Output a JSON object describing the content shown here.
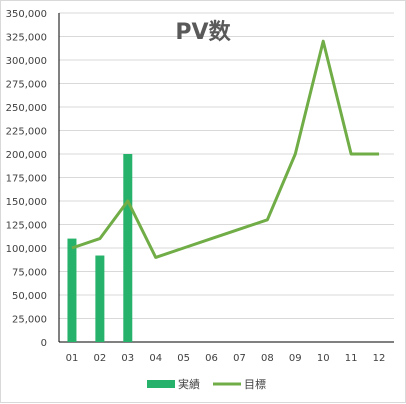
{
  "chart_data": {
    "type": "bar",
    "title": "PV数",
    "categories": [
      "01",
      "02",
      "03",
      "04",
      "05",
      "06",
      "07",
      "08",
      "09",
      "10",
      "11",
      "12"
    ],
    "series": [
      {
        "name": "実績",
        "type": "bar",
        "color": "#27b26b",
        "values": [
          110000,
          92000,
          200000,
          null,
          null,
          null,
          null,
          null,
          null,
          null,
          null,
          null
        ]
      },
      {
        "name": "目標",
        "type": "line",
        "color": "#70ad47",
        "values": [
          100000,
          110000,
          150000,
          90000,
          100000,
          110000,
          120000,
          130000,
          200000,
          320000,
          200000,
          200000
        ]
      }
    ],
    "ylim": [
      0,
      350000
    ],
    "ystep": 25000,
    "y_ticks": [
      "0",
      "25,000",
      "50,000",
      "75,000",
      "100,000",
      "125,000",
      "150,000",
      "175,000",
      "200,000",
      "225,000",
      "250,000",
      "275,000",
      "300,000",
      "325,000",
      "350,000"
    ],
    "grid": true,
    "legend": "bottom"
  }
}
